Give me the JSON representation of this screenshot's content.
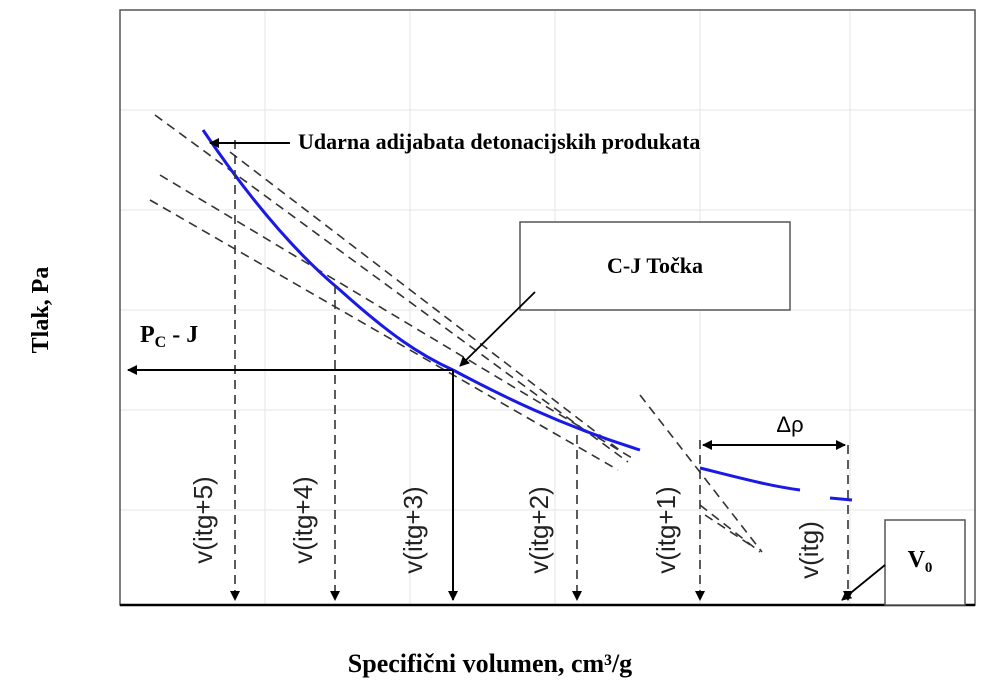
{
  "annotations": {
    "hugoniot": "Udarna adijabata detonacijskih produkata",
    "cj_point": "C-J Točka",
    "p_cj": {
      "main": "P",
      "sub": "C",
      "rest": "- J"
    },
    "delta_rho": "Δρ",
    "v0": {
      "main": "V",
      "sub": "0"
    }
  },
  "axes": {
    "y_label": "Tlak, Pa",
    "x_label": "Specifični volumen, cm³/g"
  },
  "volume_labels": [
    "v(itg+5)",
    "v(itg+4)",
    "v(itg+3)",
    "v(itg+2)",
    "v(itg+1)",
    "v(itg)"
  ]
}
